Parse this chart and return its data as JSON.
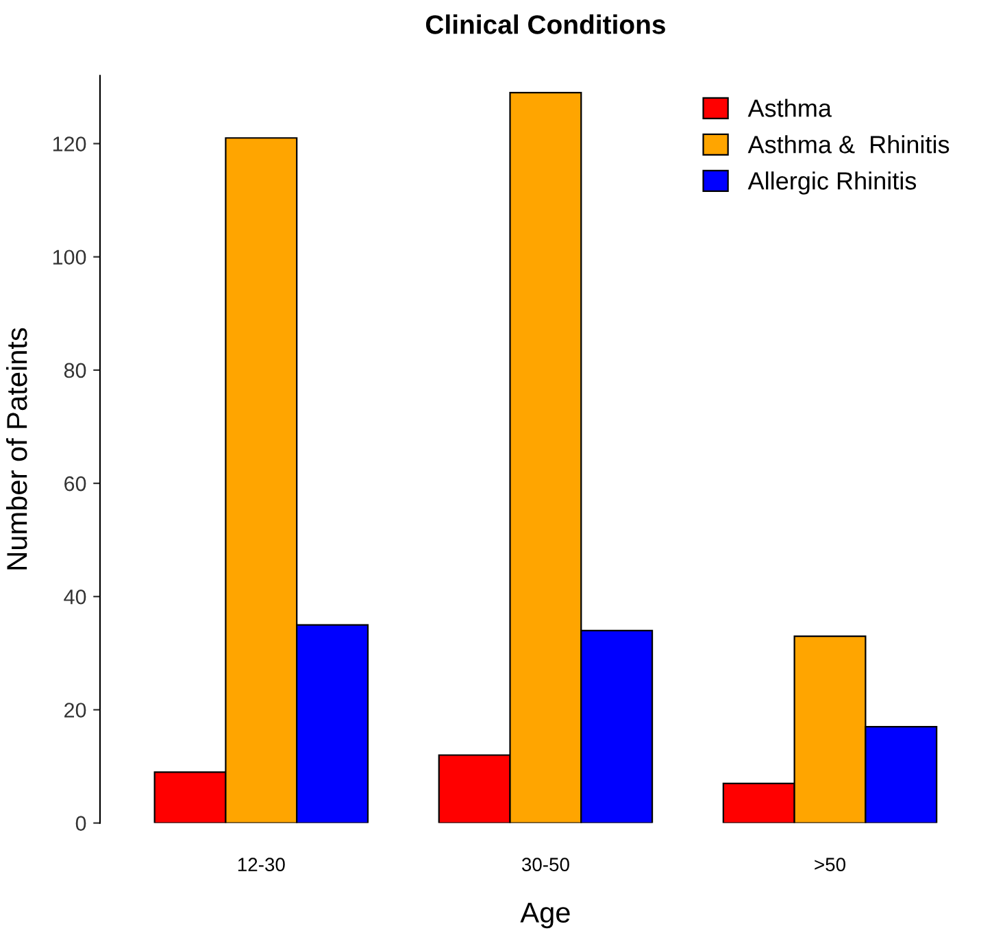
{
  "chart_data": {
    "type": "bar",
    "title": "Clinical Conditions",
    "xlabel": "Age",
    "ylabel": "Number of Pateints",
    "categories": [
      "12-30",
      "30-50",
      ">50"
    ],
    "series": [
      {
        "name": "Asthma",
        "color": "#ff0000",
        "values": [
          9,
          12,
          7
        ]
      },
      {
        "name": "Asthma &  Rhinitis",
        "color": "#ffa500",
        "values": [
          121,
          129,
          33
        ]
      },
      {
        "name": "Allergic Rhinitis",
        "color": "#0000ff",
        "values": [
          35,
          34,
          17
        ]
      }
    ],
    "ylim": [
      0,
      132
    ],
    "yticks": [
      0,
      20,
      40,
      60,
      80,
      100,
      120
    ],
    "grid": false,
    "legend": "top right"
  }
}
